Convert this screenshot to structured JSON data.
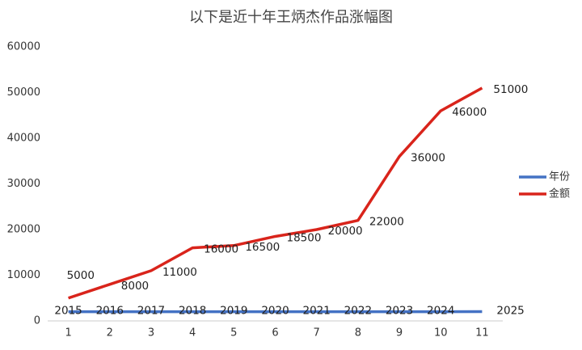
{
  "chart_data": {
    "type": "line",
    "title": "以下是近十年王炳杰作品涨幅图",
    "categories": [
      "1",
      "2",
      "3",
      "4",
      "5",
      "6",
      "7",
      "8",
      "9",
      "10",
      "11"
    ],
    "series": [
      {
        "name": "年份",
        "color": "#4472c4",
        "values": [
          2015,
          2016,
          2017,
          2018,
          2019,
          2020,
          2021,
          2022,
          2023,
          2024,
          2025
        ]
      },
      {
        "name": "金额",
        "color": "#d9241b",
        "values": [
          5000,
          8000,
          11000,
          16000,
          16500,
          18500,
          20000,
          22000,
          36000,
          46000,
          51000
        ]
      }
    ],
    "ylim": [
      0,
      60000
    ],
    "yticks": [
      0,
      10000,
      20000,
      30000,
      40000,
      50000,
      60000
    ],
    "grid": false,
    "legend": "right"
  }
}
